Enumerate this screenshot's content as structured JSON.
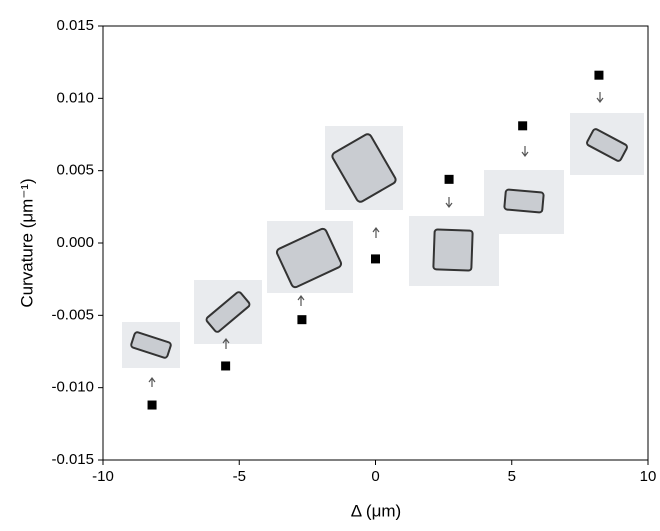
{
  "chart_data": {
    "type": "scatter",
    "xlabel": "Δ (μm)",
    "ylabel": "Curvature (μm⁻¹)",
    "x": [
      -8.2,
      -5.5,
      -2.7,
      0,
      2.7,
      5.4,
      8.2
    ],
    "series": [
      {
        "color": "#000000",
        "values": [
          -0.0112,
          -0.0085,
          -0.0053,
          -0.0011,
          0.0044,
          0.0081,
          0.0116
        ]
      }
    ],
    "xlim": [
      -10,
      10
    ],
    "xticks": [
      -10,
      -5,
      0,
      5,
      10
    ],
    "ylim": [
      -0.015,
      0.015
    ],
    "yticks": [
      -0.015,
      {
        "value": -0.01,
        "label": "-0.010"
      },
      -0.005,
      {
        "value": 0,
        "label": "0.000"
      },
      0.005,
      {
        "value": 0.01,
        "label": "0.010"
      },
      0.015
    ]
  }
}
